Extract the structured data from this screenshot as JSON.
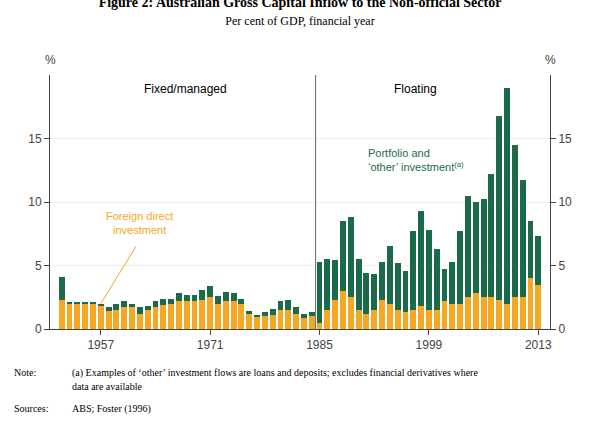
{
  "chart_data": {
    "type": "bar",
    "stacked": true,
    "title": "Figure 2: Australian Gross Capital Inflow to the Non-official Sector",
    "subtitle": "Per cent of GDP, financial year",
    "ylabel": "%",
    "y2label": "%",
    "x": [
      1952,
      1953,
      1954,
      1955,
      1956,
      1957,
      1958,
      1959,
      1960,
      1961,
      1962,
      1963,
      1964,
      1965,
      1966,
      1967,
      1968,
      1969,
      1970,
      1971,
      1972,
      1973,
      1974,
      1975,
      1976,
      1977,
      1978,
      1979,
      1980,
      1981,
      1982,
      1983,
      1984,
      1985,
      1986,
      1987,
      1988,
      1989,
      1990,
      1991,
      1992,
      1993,
      1994,
      1995,
      1996,
      1997,
      1998,
      1999,
      2000,
      2001,
      2002,
      2003,
      2004,
      2005,
      2006,
      2007,
      2008,
      2009,
      2010,
      2011,
      2012,
      2013
    ],
    "series": [
      {
        "color": "#F5A623",
        "values": [
          2.3,
          2.0,
          2.0,
          2.0,
          2.0,
          1.8,
          1.4,
          1.5,
          1.7,
          1.7,
          1.2,
          1.5,
          1.7,
          1.9,
          2.0,
          2.2,
          2.2,
          2.2,
          2.3,
          2.5,
          2.0,
          2.2,
          2.2,
          2.0,
          1.2,
          1.0,
          1.0,
          1.1,
          1.5,
          1.5,
          1.2,
          0.9,
          1.0,
          0.5,
          1.5,
          2.3,
          3.0,
          2.5,
          1.5,
          1.2,
          1.5,
          2.3,
          2.0,
          1.5,
          1.3,
          1.5,
          1.8,
          1.5,
          1.5,
          2.2,
          2.0,
          2.0,
          2.5,
          2.8,
          2.5,
          2.5,
          2.3,
          2.0,
          2.5,
          2.5,
          4.0,
          3.5
        ]
      },
      {
        "color": "#1B6B4A",
        "values": [
          1.8,
          0.1,
          0.1,
          0.1,
          0.1,
          0.2,
          0.3,
          0.5,
          0.5,
          0.3,
          0.5,
          0.3,
          0.5,
          0.5,
          0.4,
          0.6,
          0.5,
          0.5,
          0.8,
          0.9,
          0.6,
          0.7,
          0.6,
          0.4,
          0.2,
          0.1,
          0.3,
          0.5,
          0.7,
          0.8,
          0.5,
          0.3,
          0.3,
          4.8,
          4.0,
          3.1,
          5.5,
          6.3,
          4.0,
          3.2,
          2.8,
          3.0,
          4.5,
          3.7,
          3.3,
          6.2,
          7.5,
          6.3,
          4.8,
          2.5,
          3.3,
          5.7,
          8.0,
          7.2,
          7.7,
          9.7,
          14.5,
          17.0,
          12.0,
          9.2,
          4.5,
          3.8
        ]
      }
    ],
    "xlim": [
      1950.5,
      2014.5
    ],
    "xticks": [
      1957,
      1971,
      1985,
      1999,
      2013
    ],
    "ylim": [
      0,
      20
    ],
    "yticks": [
      0,
      5,
      10,
      15
    ],
    "y2lim": [
      0,
      20
    ],
    "y2ticks": [
      0,
      5,
      10,
      15
    ],
    "grid": true,
    "divider": 1984.5,
    "region_labels": [
      "Fixed/managed",
      "Floating"
    ],
    "annotations": [
      "Foreign direct\ninvestment",
      "Portfolio and",
      "‘other’ investment",
      "(a)"
    ],
    "notes": [
      "Note:",
      "(a) Examples of ‘other’ investment flows are loans and deposits; excludes financial derivatives where",
      "data are available",
      "Sources:",
      "ABS; Foster (1996)"
    ]
  }
}
